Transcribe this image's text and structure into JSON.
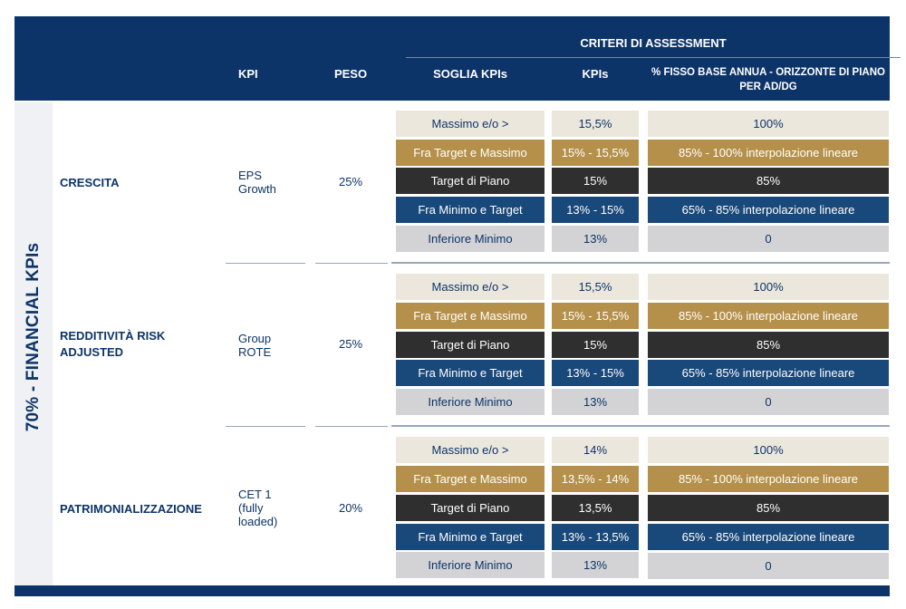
{
  "header": {
    "criteria_title": "CRITERI DI ASSESSMENT",
    "col_kpi": "KPI",
    "col_peso": "PESO",
    "col_soglia": "SOGLIA KPIs",
    "col_kpis": "KPIs",
    "col_fisso_line1": "% FISSO BASE ANNUA - ORIZZONTE DI PIANO",
    "col_fisso_line2": "PER AD/DG"
  },
  "side_label": "70% - FINANCIAL KPIs",
  "groups": [
    {
      "name": "CRESCITA",
      "kpi": "EPS\nGrowth",
      "peso": "25%",
      "rows": [
        {
          "soglia": "Massimo e/o >",
          "kpi": "15,5%",
          "fisso": "100%"
        },
        {
          "soglia": "Fra Target e Massimo",
          "kpi": "15% - 15,5%",
          "fisso": "85% - 100% interpolazione lineare"
        },
        {
          "soglia": "Target di Piano",
          "kpi": "15%",
          "fisso": "85%"
        },
        {
          "soglia": "Fra Minimo e Target",
          "kpi": "13% - 15%",
          "fisso": "65% - 85% interpolazione lineare"
        },
        {
          "soglia": "Inferiore Minimo",
          "kpi": "13%",
          "fisso": "0"
        }
      ]
    },
    {
      "name": "REDDITIVITÀ RISK ADJUSTED",
      "kpi": "Group\nROTE",
      "peso": "25%",
      "rows": [
        {
          "soglia": "Massimo e/o >",
          "kpi": "15,5%",
          "fisso": "100%"
        },
        {
          "soglia": "Fra Target e Massimo",
          "kpi": "15% - 15,5%",
          "fisso": "85% - 100% interpolazione lineare"
        },
        {
          "soglia": "Target di Piano",
          "kpi": "15%",
          "fisso": "85%"
        },
        {
          "soglia": "Fra Minimo e Target",
          "kpi": "13% - 15%",
          "fisso": "65% - 85% interpolazione lineare"
        },
        {
          "soglia": "Inferiore Minimo",
          "kpi": "13%",
          "fisso": "0"
        }
      ]
    },
    {
      "name": "PATRIMONIALIZZAZIONE",
      "kpi": "CET 1\n(fully\nloaded)",
      "peso": "20%",
      "rows": [
        {
          "soglia": "Massimo e/o >",
          "kpi": "14%",
          "fisso": "100%"
        },
        {
          "soglia": "Fra Target e Massimo",
          "kpi": "13,5% - 14%",
          "fisso": "85% - 100% interpolazione lineare"
        },
        {
          "soglia": "Target di Piano",
          "kpi": "13,5%",
          "fisso": "85%"
        },
        {
          "soglia": "Fra Minimo e Target",
          "kpi": "13% - 13,5%",
          "fisso": "65% - 85% interpolazione lineare"
        },
        {
          "soglia": "Inferiore Minimo",
          "kpi": "13%",
          "fisso": "0"
        }
      ]
    }
  ],
  "colors": {
    "navy": "#0d3468",
    "light_beige": "#ebe7dc",
    "gold": "#b5904a",
    "charcoal": "#2f2f2f",
    "blue": "#19487a",
    "light_grey": "#d3d3d5"
  }
}
